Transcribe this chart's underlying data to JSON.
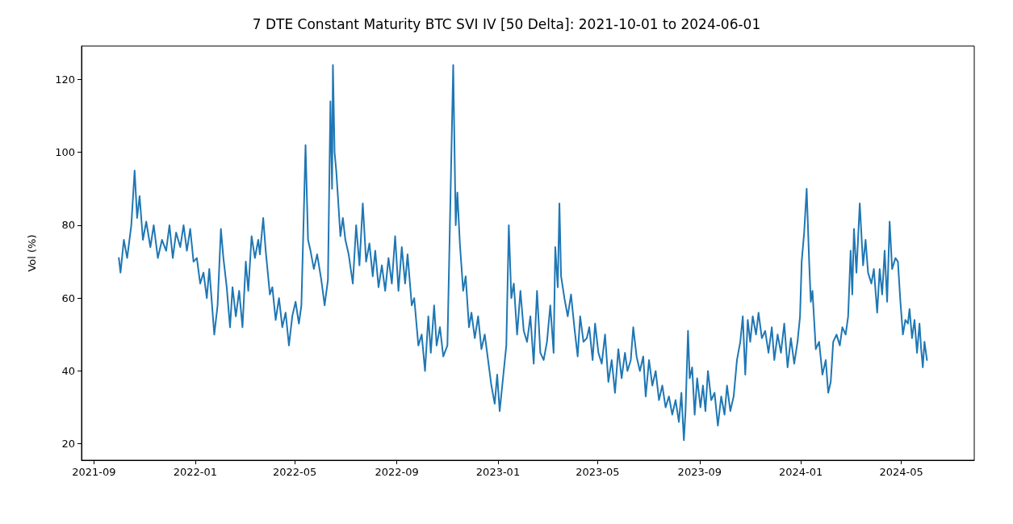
{
  "chart_data": {
    "type": "line",
    "title": "7 DTE Constant Maturity BTC SVI IV [50 Delta]: 2021-10-01 to 2024-06-01",
    "ylabel": "Vol (%)",
    "xlim": [
      "2021-08-17",
      "2024-07-28"
    ],
    "ylim": [
      15.5,
      129.2
    ],
    "xticks": [
      "2021-09",
      "2022-01",
      "2022-05",
      "2022-09",
      "2023-01",
      "2023-05",
      "2023-09",
      "2024-01",
      "2024-05"
    ],
    "yticks": [
      20,
      40,
      60,
      80,
      100,
      120
    ],
    "grid": false,
    "marker": "none",
    "line_style": "solid",
    "x": [
      "2021-10-01",
      "2021-10-03",
      "2021-10-07",
      "2021-10-11",
      "2021-10-16",
      "2021-10-20",
      "2021-10-23",
      "2021-10-26",
      "2021-10-30",
      "2021-11-03",
      "2021-11-08",
      "2021-11-12",
      "2021-11-17",
      "2021-11-22",
      "2021-11-27",
      "2021-12-01",
      "2021-12-05",
      "2021-12-09",
      "2021-12-14",
      "2021-12-18",
      "2021-12-22",
      "2021-12-26",
      "2021-12-30",
      "2022-01-03",
      "2022-01-07",
      "2022-01-11",
      "2022-01-15",
      "2022-01-18",
      "2022-01-24",
      "2022-01-28",
      "2022-02-01",
      "2022-02-04",
      "2022-02-08",
      "2022-02-12",
      "2022-02-15",
      "2022-02-19",
      "2022-02-23",
      "2022-02-27",
      "2022-03-03",
      "2022-03-06",
      "2022-03-10",
      "2022-03-14",
      "2022-03-18",
      "2022-03-20",
      "2022-03-24",
      "2022-03-27",
      "2022-04-01",
      "2022-04-04",
      "2022-04-08",
      "2022-04-12",
      "2022-04-16",
      "2022-04-20",
      "2022-04-24",
      "2022-04-28",
      "2022-05-02",
      "2022-05-06",
      "2022-05-09",
      "2022-05-12",
      "2022-05-14",
      "2022-05-17",
      "2022-05-20",
      "2022-05-24",
      "2022-05-28",
      "2022-06-02",
      "2022-06-06",
      "2022-06-10",
      "2022-06-13",
      "2022-06-15",
      "2022-06-16",
      "2022-06-18",
      "2022-06-20",
      "2022-06-22",
      "2022-06-25",
      "2022-06-28",
      "2022-07-01",
      "2022-07-05",
      "2022-07-10",
      "2022-07-14",
      "2022-07-18",
      "2022-07-22",
      "2022-07-26",
      "2022-07-30",
      "2022-08-03",
      "2022-08-06",
      "2022-08-10",
      "2022-08-14",
      "2022-08-18",
      "2022-08-22",
      "2022-08-26",
      "2022-08-30",
      "2022-09-03",
      "2022-09-07",
      "2022-09-11",
      "2022-09-14",
      "2022-09-19",
      "2022-09-22",
      "2022-09-27",
      "2022-10-01",
      "2022-10-05",
      "2022-10-09",
      "2022-10-12",
      "2022-10-16",
      "2022-10-19",
      "2022-10-23",
      "2022-10-27",
      "2022-11-01",
      "2022-11-08",
      "2022-11-11",
      "2022-11-13",
      "2022-11-16",
      "2022-11-20",
      "2022-11-23",
      "2022-11-27",
      "2022-11-30",
      "2022-12-04",
      "2022-12-08",
      "2022-12-12",
      "2022-12-16",
      "2022-12-20",
      "2022-12-24",
      "2022-12-28",
      "2022-12-31",
      "2023-01-03",
      "2023-01-07",
      "2023-01-11",
      "2023-01-14",
      "2023-01-17",
      "2023-01-20",
      "2023-01-24",
      "2023-01-28",
      "2023-02-01",
      "2023-02-05",
      "2023-02-09",
      "2023-02-13",
      "2023-02-17",
      "2023-02-21",
      "2023-02-25",
      "2023-03-01",
      "2023-03-05",
      "2023-03-09",
      "2023-03-11",
      "2023-03-14",
      "2023-03-16",
      "2023-03-18",
      "2023-03-22",
      "2023-03-26",
      "2023-03-30",
      "2023-04-03",
      "2023-04-07",
      "2023-04-10",
      "2023-04-14",
      "2023-04-18",
      "2023-04-21",
      "2023-04-25",
      "2023-04-28",
      "2023-05-02",
      "2023-05-06",
      "2023-05-10",
      "2023-05-14",
      "2023-05-18",
      "2023-05-22",
      "2023-05-26",
      "2023-05-30",
      "2023-06-03",
      "2023-06-06",
      "2023-06-10",
      "2023-06-13",
      "2023-06-17",
      "2023-06-21",
      "2023-06-25",
      "2023-06-28",
      "2023-07-02",
      "2023-07-06",
      "2023-07-10",
      "2023-07-14",
      "2023-07-18",
      "2023-07-22",
      "2023-07-26",
      "2023-07-30",
      "2023-08-03",
      "2023-08-07",
      "2023-08-10",
      "2023-08-13",
      "2023-08-15",
      "2023-08-18",
      "2023-08-20",
      "2023-08-23",
      "2023-08-26",
      "2023-08-29",
      "2023-09-02",
      "2023-09-05",
      "2023-09-08",
      "2023-09-11",
      "2023-09-15",
      "2023-09-19",
      "2023-09-23",
      "2023-09-27",
      "2023-10-01",
      "2023-10-04",
      "2023-10-08",
      "2023-10-12",
      "2023-10-16",
      "2023-10-20",
      "2023-10-23",
      "2023-10-26",
      "2023-10-29",
      "2023-11-01",
      "2023-11-04",
      "2023-11-08",
      "2023-11-11",
      "2023-11-15",
      "2023-11-19",
      "2023-11-23",
      "2023-11-27",
      "2023-11-30",
      "2023-12-04",
      "2023-12-08",
      "2023-12-12",
      "2023-12-16",
      "2023-12-20",
      "2023-12-24",
      "2023-12-28",
      "2023-12-31",
      "2024-01-02",
      "2024-01-05",
      "2024-01-08",
      "2024-01-11",
      "2024-01-13",
      "2024-01-15",
      "2024-01-19",
      "2024-01-23",
      "2024-01-27",
      "2024-01-31",
      "2024-02-03",
      "2024-02-06",
      "2024-02-09",
      "2024-02-13",
      "2024-02-17",
      "2024-02-20",
      "2024-02-24",
      "2024-02-27",
      "2024-03-01",
      "2024-03-03",
      "2024-03-05",
      "2024-03-08",
      "2024-03-12",
      "2024-03-16",
      "2024-03-19",
      "2024-03-22",
      "2024-03-26",
      "2024-03-29",
      "2024-04-02",
      "2024-04-05",
      "2024-04-08",
      "2024-04-11",
      "2024-04-14",
      "2024-04-17",
      "2024-04-20",
      "2024-04-24",
      "2024-04-27",
      "2024-04-30",
      "2024-05-03",
      "2024-05-06",
      "2024-05-09",
      "2024-05-11",
      "2024-05-14",
      "2024-05-17",
      "2024-05-20",
      "2024-05-23",
      "2024-05-25",
      "2024-05-27",
      "2024-05-29",
      "2024-06-01"
    ],
    "series": [
      {
        "color": "#1f77b4",
        "values": [
          71,
          67,
          76,
          71,
          80,
          95,
          82,
          88,
          76,
          81,
          74,
          80,
          71,
          76,
          73,
          80,
          71,
          78,
          74,
          80,
          73,
          79,
          70,
          71,
          64,
          67,
          60,
          68,
          50,
          58,
          79,
          71,
          63,
          52,
          63,
          55,
          62,
          52,
          70,
          62,
          77,
          71,
          76,
          72,
          82,
          73,
          61,
          63,
          54,
          60,
          52,
          56,
          47,
          55,
          59,
          53,
          58,
          84,
          102,
          76,
          73,
          68,
          72,
          65,
          58,
          65,
          114,
          90,
          124,
          100,
          95,
          88,
          77,
          82,
          76,
          72,
          64,
          80,
          69,
          86,
          70,
          75,
          66,
          73,
          63,
          69,
          62,
          71,
          64,
          77,
          62,
          74,
          64,
          72,
          58,
          60,
          47,
          50,
          40,
          55,
          45,
          58,
          47,
          52,
          44,
          47,
          124,
          80,
          89,
          75,
          62,
          66,
          52,
          56,
          49,
          55,
          46,
          50,
          43,
          36,
          31,
          39,
          29,
          38,
          47,
          80,
          60,
          64,
          50,
          62,
          51,
          48,
          55,
          42,
          62,
          45,
          43,
          48,
          58,
          45,
          74,
          63,
          86,
          66,
          60,
          55,
          61,
          52,
          44,
          55,
          48,
          49,
          52,
          43,
          53,
          45,
          42,
          50,
          37,
          43,
          34,
          46,
          38,
          45,
          40,
          43,
          52,
          44,
          40,
          44,
          33,
          43,
          36,
          40,
          32,
          36,
          30,
          33,
          28,
          32,
          26,
          34,
          21,
          29,
          51,
          38,
          41,
          28,
          38,
          30,
          36,
          29,
          40,
          32,
          34,
          25,
          33,
          28,
          36,
          29,
          33,
          43,
          48,
          55,
          39,
          54,
          48,
          55,
          50,
          56,
          49,
          51,
          45,
          52,
          43,
          50,
          45,
          53,
          41,
          49,
          42,
          48,
          55,
          70,
          78,
          90,
          70,
          59,
          62,
          46,
          48,
          39,
          43,
          34,
          37,
          48,
          50,
          47,
          52,
          50,
          55,
          73,
          61,
          79,
          67,
          86,
          69,
          76,
          67,
          64,
          68,
          56,
          68,
          61,
          73,
          59,
          81,
          68,
          71,
          70,
          59,
          50,
          54,
          53,
          57,
          49,
          54,
          45,
          53,
          46,
          41,
          48,
          43
        ]
      }
    ]
  }
}
